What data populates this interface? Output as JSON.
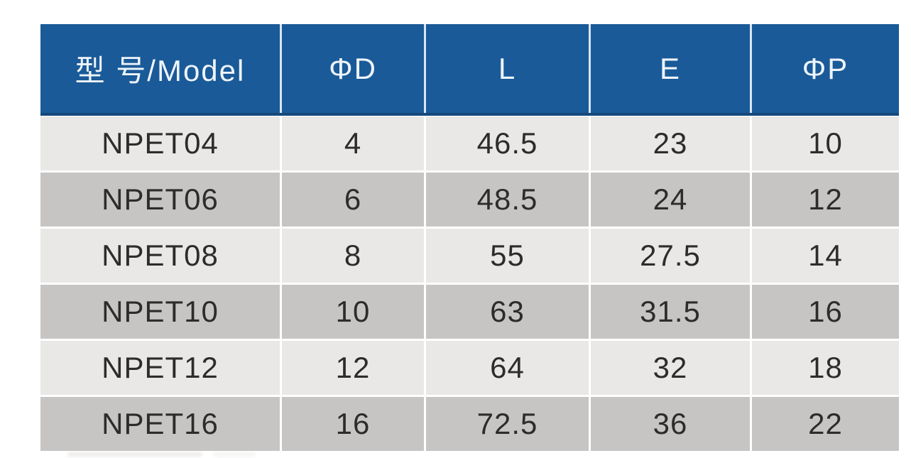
{
  "page": {
    "background": "#ffffff",
    "description_colors": {
      "header_bg": "#1a5a98",
      "header_text": "#eef4fa",
      "header_bottom_border": "#15497c",
      "header_divider": "#d9e6f2",
      "row_light_bg": "#e9e8e6",
      "row_dark_bg": "#c6c5c3",
      "cell_text": "#2d2c2a",
      "cell_divider": "#ffffff"
    }
  },
  "table": {
    "headers": [
      "型 号/Model",
      "ΦD",
      "L",
      "E",
      "ΦP"
    ],
    "rows": [
      [
        "NPET04",
        "4",
        "46.5",
        "23",
        "10"
      ],
      [
        "NPET06",
        "6",
        "48.5",
        "24",
        "12"
      ],
      [
        "NPET08",
        "8",
        "55",
        "27.5",
        "14"
      ],
      [
        "NPET10",
        "10",
        "63",
        "31.5",
        "16"
      ],
      [
        "NPET12",
        "12",
        "64",
        "32",
        "18"
      ],
      [
        "NPET16",
        "16",
        "72.5",
        "36",
        "22"
      ]
    ]
  },
  "chart_data": {
    "type": "table",
    "title": "",
    "columns": [
      "型 号/Model",
      "ΦD",
      "L",
      "E",
      "ΦP"
    ],
    "rows": [
      {
        "model": "NPET04",
        "D": 4,
        "L": 46.5,
        "E": 23,
        "P": 10
      },
      {
        "model": "NPET06",
        "D": 6,
        "L": 48.5,
        "E": 24,
        "P": 12
      },
      {
        "model": "NPET08",
        "D": 8,
        "L": 55,
        "E": 27.5,
        "P": 14
      },
      {
        "model": "NPET10",
        "D": 10,
        "L": 63,
        "E": 31.5,
        "P": 16
      },
      {
        "model": "NPET12",
        "D": 12,
        "L": 64,
        "E": 32,
        "P": 18
      },
      {
        "model": "NPET16",
        "D": 16,
        "L": 72.5,
        "E": 36,
        "P": 22
      }
    ]
  }
}
